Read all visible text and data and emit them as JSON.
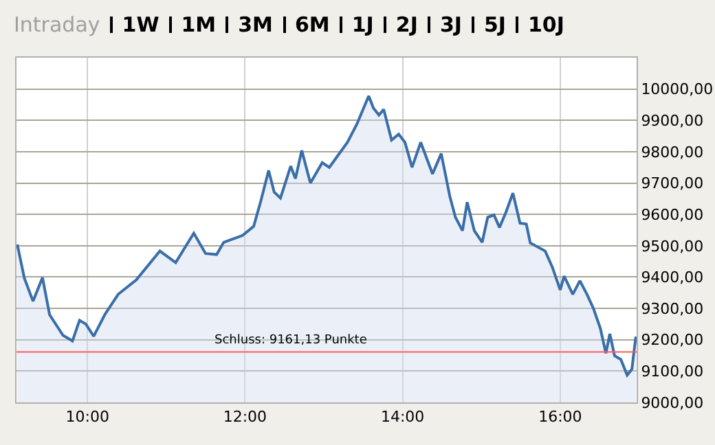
{
  "chart_data": {
    "type": "area",
    "annotations": [
      "Intraday",
      "1W",
      "1M",
      "3M",
      "6M",
      "1J",
      "2J",
      "3J",
      "5J",
      "10J"
    ],
    "series": [
      {
        "color": "#3a6ea8",
        "x": [
          9.11,
          9.2,
          9.31,
          9.43,
          9.52,
          9.69,
          9.81,
          9.9,
          9.98,
          10.08,
          10.22,
          10.39,
          10.62,
          10.92,
          11.12,
          11.35,
          11.5,
          11.64,
          11.73,
          11.97,
          12.11,
          12.2,
          12.3,
          12.37,
          12.45,
          12.58,
          12.64,
          12.72,
          12.83,
          12.98,
          13.07,
          13.3,
          13.42,
          13.57,
          13.63,
          13.7,
          13.76,
          13.86,
          13.95,
          14.03,
          14.12,
          14.23,
          14.38,
          14.49,
          14.6,
          14.67,
          14.76,
          14.82,
          14.91,
          15.01,
          15.08,
          15.16,
          15.23,
          15.31,
          15.4,
          15.49,
          15.57,
          15.62,
          15.81,
          15.9,
          16.0,
          16.05,
          16.16,
          16.25,
          16.34,
          16.42,
          16.51,
          16.58,
          16.63,
          16.69,
          16.77,
          16.85,
          16.91,
          16.93,
          16.96
        ],
        "values": [
          9504,
          9396,
          9323,
          9398,
          9280,
          9214,
          9196,
          9262,
          9250,
          9211,
          9280,
          9345,
          9391,
          9483,
          9446,
          9540,
          9475,
          9472,
          9511,
          9533,
          9562,
          9642,
          9740,
          9671,
          9652,
          9754,
          9714,
          9804,
          9700,
          9765,
          9750,
          9830,
          9888,
          9978,
          9939,
          9917,
          9935,
          9837,
          9856,
          9830,
          9750,
          9830,
          9729,
          9794,
          9657,
          9591,
          9548,
          9639,
          9548,
          9511,
          9591,
          9598,
          9558,
          9606,
          9668,
          9572,
          9569,
          9509,
          9483,
          9432,
          9359,
          9403,
          9345,
          9388,
          9345,
          9301,
          9236,
          9157,
          9219,
          9149,
          9137,
          9087,
          9106,
          9149,
          9210
        ]
      }
    ],
    "xlim": [
      9.1,
      16.97
    ],
    "xticks": [
      {
        "value": 10,
        "label": "10:00"
      },
      {
        "value": 12,
        "label": "12:00"
      },
      {
        "value": 14,
        "label": "14:00"
      },
      {
        "value": 16,
        "label": "16:00"
      }
    ],
    "ylim": [
      9000,
      10100
    ],
    "yticks": [
      {
        "value": 9000,
        "label": "9000,00"
      },
      {
        "value": 9100,
        "label": "9100,00"
      },
      {
        "value": 9200,
        "label": "9200,00"
      },
      {
        "value": 9300,
        "label": "9300,00"
      },
      {
        "value": 9400,
        "label": "9400,00"
      },
      {
        "value": 9500,
        "label": "9500,00"
      },
      {
        "value": 9600,
        "label": "9600,00"
      },
      {
        "value": 9700,
        "label": "9700,00"
      },
      {
        "value": 9800,
        "label": "9800,00"
      },
      {
        "value": 9900,
        "label": "9900,00"
      },
      {
        "value": 10000,
        "label": "10000,00"
      }
    ],
    "ref_lines": [
      {
        "axis": "y",
        "value": 9161.13,
        "label": "Schluss: 9161,13 Punkte",
        "color": "#ff5a5a"
      }
    ],
    "grid": true
  }
}
